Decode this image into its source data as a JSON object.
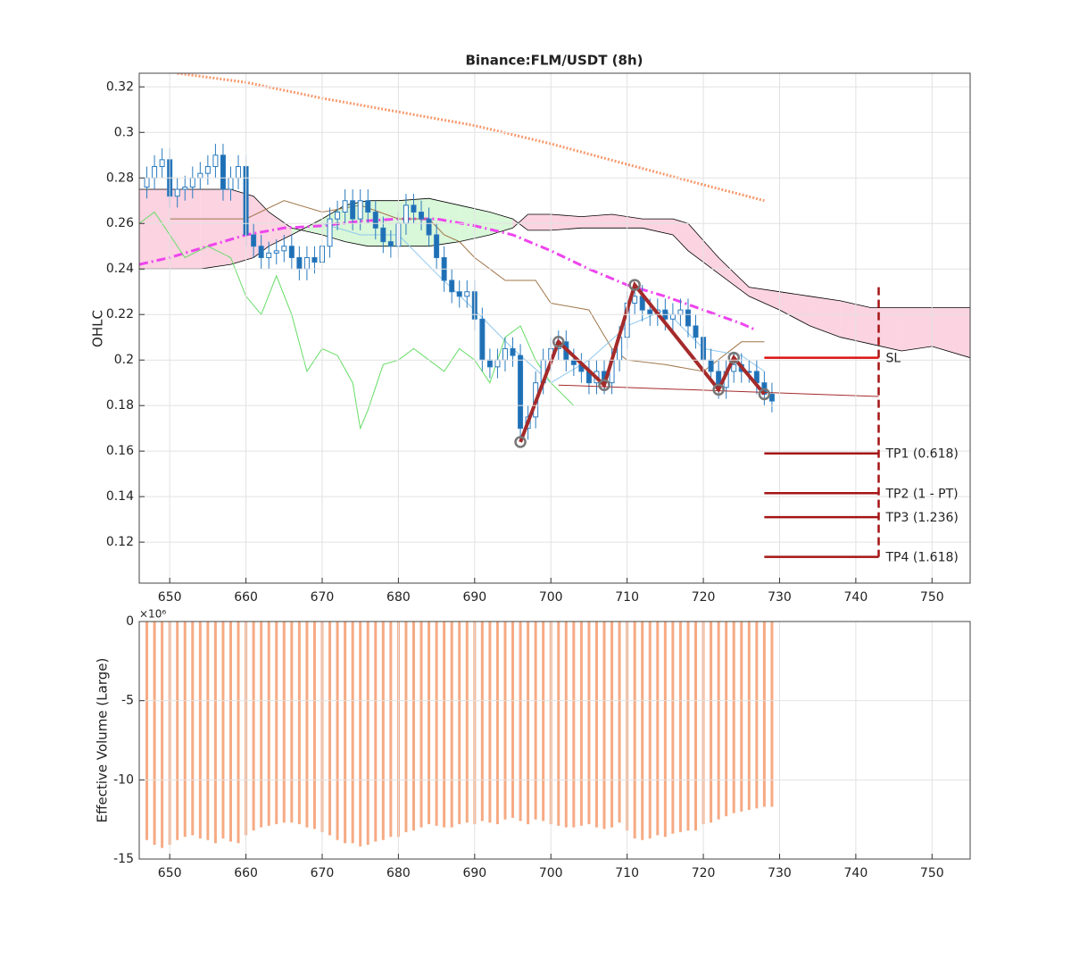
{
  "chart_data": [
    {
      "type": "candlestick",
      "title": "Binance:FLM/USDT (8h)",
      "ylabel": "OHLC",
      "xlim": [
        646,
        755
      ],
      "ylim": [
        0.102,
        0.326
      ],
      "xticks": [
        650,
        660,
        670,
        680,
        690,
        700,
        710,
        720,
        730,
        740,
        750
      ],
      "yticks": [
        0.12,
        0.14,
        0.16,
        0.18,
        0.2,
        0.22,
        0.24,
        0.26,
        0.28,
        0.3,
        0.32
      ],
      "grid": true,
      "up_color": "#ffffff",
      "down_color": "#1f6fb5",
      "edge_color": "#2a7bbf",
      "x": [
        647,
        648,
        649,
        650,
        651,
        652,
        653,
        654,
        655,
        656,
        657,
        658,
        659,
        660,
        661,
        662,
        663,
        664,
        665,
        666,
        667,
        668,
        669,
        670,
        671,
        672,
        673,
        674,
        675,
        676,
        677,
        678,
        679,
        680,
        681,
        682,
        683,
        684,
        685,
        686,
        687,
        688,
        689,
        690,
        691,
        692,
        693,
        694,
        695,
        696,
        697,
        698,
        699,
        700,
        701,
        702,
        703,
        704,
        705,
        706,
        707,
        708,
        709,
        710,
        711,
        712,
        713,
        714,
        715,
        716,
        717,
        718,
        719,
        720,
        721,
        722,
        723,
        724,
        725,
        726,
        727,
        728,
        729
      ],
      "open": [
        0.276,
        0.28,
        0.285,
        0.288,
        0.272,
        0.275,
        0.276,
        0.28,
        0.282,
        0.285,
        0.29,
        0.275,
        0.28,
        0.285,
        0.255,
        0.25,
        0.245,
        0.247,
        0.248,
        0.25,
        0.245,
        0.24,
        0.245,
        0.243,
        0.25,
        0.262,
        0.265,
        0.27,
        0.262,
        0.27,
        0.265,
        0.258,
        0.252,
        0.25,
        0.26,
        0.268,
        0.265,
        0.262,
        0.255,
        0.245,
        0.235,
        0.23,
        0.228,
        0.23,
        0.218,
        0.2,
        0.197,
        0.2,
        0.205,
        0.202,
        0.17,
        0.175,
        0.19,
        0.2,
        0.205,
        0.208,
        0.2,
        0.198,
        0.195,
        0.19,
        0.195,
        0.19,
        0.2,
        0.21,
        0.225,
        0.228,
        0.222,
        0.22,
        0.222,
        0.218,
        0.22,
        0.222,
        0.215,
        0.21,
        0.2,
        0.195,
        0.188,
        0.195,
        0.198,
        0.195,
        0.195,
        0.19,
        0.185
      ],
      "high": [
        0.285,
        0.29,
        0.293,
        0.293,
        0.28,
        0.281,
        0.285,
        0.287,
        0.29,
        0.295,
        0.295,
        0.285,
        0.29,
        0.29,
        0.26,
        0.255,
        0.252,
        0.253,
        0.255,
        0.255,
        0.25,
        0.25,
        0.25,
        0.255,
        0.267,
        0.27,
        0.275,
        0.275,
        0.275,
        0.275,
        0.27,
        0.263,
        0.257,
        0.265,
        0.273,
        0.273,
        0.27,
        0.267,
        0.26,
        0.25,
        0.24,
        0.235,
        0.235,
        0.235,
        0.223,
        0.205,
        0.205,
        0.21,
        0.21,
        0.207,
        0.18,
        0.195,
        0.205,
        0.21,
        0.213,
        0.213,
        0.205,
        0.203,
        0.2,
        0.2,
        0.2,
        0.205,
        0.215,
        0.23,
        0.233,
        0.233,
        0.227,
        0.227,
        0.227,
        0.225,
        0.227,
        0.227,
        0.22,
        0.215,
        0.205,
        0.2,
        0.2,
        0.203,
        0.203,
        0.2,
        0.2,
        0.195,
        0.19
      ],
      "low": [
        0.271,
        0.275,
        0.28,
        0.267,
        0.267,
        0.27,
        0.271,
        0.275,
        0.277,
        0.28,
        0.27,
        0.27,
        0.275,
        0.25,
        0.245,
        0.24,
        0.24,
        0.242,
        0.243,
        0.24,
        0.235,
        0.235,
        0.238,
        0.238,
        0.245,
        0.257,
        0.26,
        0.257,
        0.257,
        0.26,
        0.253,
        0.247,
        0.245,
        0.245,
        0.255,
        0.26,
        0.257,
        0.25,
        0.24,
        0.23,
        0.225,
        0.223,
        0.223,
        0.213,
        0.195,
        0.192,
        0.192,
        0.195,
        0.197,
        0.165,
        0.165,
        0.17,
        0.185,
        0.195,
        0.2,
        0.195,
        0.193,
        0.19,
        0.185,
        0.185,
        0.185,
        0.185,
        0.195,
        0.205,
        0.22,
        0.217,
        0.215,
        0.215,
        0.213,
        0.213,
        0.215,
        0.21,
        0.205,
        0.195,
        0.19,
        0.183,
        0.183,
        0.19,
        0.19,
        0.19,
        0.185,
        0.18,
        0.177
      ],
      "close": [
        0.28,
        0.285,
        0.288,
        0.272,
        0.275,
        0.276,
        0.28,
        0.282,
        0.285,
        0.29,
        0.275,
        0.28,
        0.285,
        0.255,
        0.25,
        0.245,
        0.247,
        0.248,
        0.25,
        0.245,
        0.24,
        0.245,
        0.243,
        0.25,
        0.262,
        0.265,
        0.27,
        0.262,
        0.27,
        0.265,
        0.258,
        0.252,
        0.25,
        0.26,
        0.268,
        0.265,
        0.262,
        0.255,
        0.245,
        0.235,
        0.23,
        0.228,
        0.23,
        0.218,
        0.2,
        0.197,
        0.2,
        0.205,
        0.202,
        0.17,
        0.175,
        0.19,
        0.2,
        0.205,
        0.208,
        0.2,
        0.198,
        0.195,
        0.19,
        0.195,
        0.19,
        0.2,
        0.21,
        0.225,
        0.228,
        0.222,
        0.22,
        0.222,
        0.218,
        0.22,
        0.222,
        0.215,
        0.21,
        0.2,
        0.195,
        0.188,
        0.195,
        0.198,
        0.195,
        0.195,
        0.19,
        0.185,
        0.182
      ],
      "cloud": {
        "x": [
          646,
          650,
          654,
          658,
          661,
          663,
          666,
          670,
          673,
          676,
          680,
          684,
          688,
          692,
          695,
          697,
          700,
          704,
          708,
          712,
          716,
          718,
          722,
          726,
          730,
          734,
          738,
          742,
          746,
          750,
          755
        ],
        "span_a": [
          0.24,
          0.24,
          0.24,
          0.242,
          0.245,
          0.25,
          0.255,
          0.262,
          0.268,
          0.27,
          0.27,
          0.271,
          0.268,
          0.265,
          0.262,
          0.257,
          0.257,
          0.258,
          0.258,
          0.258,
          0.255,
          0.248,
          0.238,
          0.228,
          0.222,
          0.215,
          0.21,
          0.207,
          0.204,
          0.206,
          0.201
        ],
        "span_b": [
          0.275,
          0.275,
          0.275,
          0.275,
          0.272,
          0.265,
          0.258,
          0.255,
          0.252,
          0.25,
          0.25,
          0.25,
          0.252,
          0.255,
          0.258,
          0.264,
          0.264,
          0.263,
          0.264,
          0.262,
          0.262,
          0.26,
          0.245,
          0.232,
          0.23,
          0.228,
          0.226,
          0.223,
          0.223,
          0.223,
          0.223
        ],
        "bull_color": "#d9f7d9",
        "bear_color": "#fbd3e1"
      },
      "lines": [
        {
          "color": "#f79a6e",
          "width": 3,
          "dash": "2 2",
          "x": [
            651,
            660,
            670,
            680,
            690,
            700,
            710,
            720,
            728
          ],
          "values": [
            0.326,
            0.322,
            0.315,
            0.309,
            0.303,
            0.295,
            0.286,
            0.277,
            0.27
          ]
        },
        {
          "color": "#ee44ee",
          "width": 3,
          "dash": "10 4 2 4",
          "x": [
            646,
            650,
            655,
            660,
            665,
            670,
            675,
            680,
            685,
            690,
            695,
            700,
            705,
            710,
            715,
            720,
            725,
            727
          ],
          "values": [
            0.242,
            0.245,
            0.25,
            0.255,
            0.258,
            0.259,
            0.261,
            0.262,
            0.262,
            0.259,
            0.255,
            0.248,
            0.24,
            0.233,
            0.228,
            0.222,
            0.216,
            0.213
          ]
        },
        {
          "color": "#a0764a",
          "width": 1,
          "dash": "",
          "x": [
            650,
            660,
            665,
            670,
            675,
            680,
            684,
            686,
            688,
            690,
            692,
            694,
            698,
            700,
            705,
            708,
            710,
            715,
            720,
            725,
            728
          ],
          "values": [
            0.262,
            0.262,
            0.27,
            0.265,
            0.268,
            0.262,
            0.262,
            0.255,
            0.252,
            0.245,
            0.24,
            0.235,
            0.235,
            0.225,
            0.222,
            0.205,
            0.2,
            0.198,
            0.195,
            0.208,
            0.208
          ]
        },
        {
          "color": "#8ec8ef",
          "width": 1,
          "dash": "",
          "x": [
            670,
            675,
            680,
            685,
            690,
            695,
            700,
            705,
            710,
            715,
            720,
            725,
            728
          ],
          "values": [
            0.26,
            0.255,
            0.255,
            0.238,
            0.222,
            0.205,
            0.19,
            0.2,
            0.215,
            0.222,
            0.205,
            0.202,
            0.195
          ]
        },
        {
          "color": "#66dd66",
          "width": 1,
          "dash": "",
          "x": [
            646,
            648,
            650,
            652,
            655,
            658,
            660,
            662,
            664,
            666,
            668,
            669,
            670,
            672,
            674,
            675,
            676,
            678,
            680,
            682,
            684,
            686,
            688,
            690,
            692,
            694,
            696,
            698,
            700,
            703
          ],
          "values": [
            0.26,
            0.265,
            0.255,
            0.245,
            0.25,
            0.245,
            0.228,
            0.22,
            0.237,
            0.22,
            0.195,
            0.2,
            0.205,
            0.202,
            0.19,
            0.17,
            0.178,
            0.198,
            0.2,
            0.205,
            0.2,
            0.195,
            0.205,
            0.2,
            0.19,
            0.21,
            0.215,
            0.2,
            0.19,
            0.18
          ]
        }
      ],
      "pattern": {
        "color": "#a52a2a",
        "x": [
          696,
          701,
          707,
          711,
          722,
          724,
          728
        ],
        "values": [
          0.164,
          0.208,
          0.189,
          0.233,
          0.187,
          0.201,
          0.185
        ]
      },
      "trendline": {
        "color": "#a52a2a",
        "x": [
          701,
          743
        ],
        "values": [
          0.189,
          0.184
        ]
      },
      "levels": [
        {
          "label": "SL",
          "value": 0.201,
          "color": "#dd1111"
        },
        {
          "label": "TP1 (0.618)",
          "value": 0.159,
          "color": "#a51515"
        },
        {
          "label": "TP2 (1 - PT)",
          "value": 0.1415,
          "color": "#a51515"
        },
        {
          "label": "TP3 (1.236)",
          "value": 0.131,
          "color": "#a51515"
        },
        {
          "label": "TP4 (1.618)",
          "value": 0.1135,
          "color": "#a51515"
        }
      ],
      "level_x": [
        728,
        743
      ],
      "stop_top": 0.232
    },
    {
      "type": "bar",
      "ylabel": "Effective Volume (Large)",
      "exponent_label": "×10⁶",
      "color": "#f6aa84",
      "xlim": [
        646,
        755
      ],
      "ylim": [
        -15,
        0
      ],
      "xticks": [
        650,
        660,
        670,
        680,
        690,
        700,
        710,
        720,
        730,
        740,
        750
      ],
      "yticks": [
        -15,
        -10,
        -5,
        0
      ],
      "grid": true,
      "x": [
        647,
        648,
        649,
        650,
        651,
        652,
        653,
        654,
        655,
        656,
        657,
        658,
        659,
        660,
        661,
        662,
        663,
        664,
        665,
        666,
        667,
        668,
        669,
        670,
        671,
        672,
        673,
        674,
        675,
        676,
        677,
        678,
        679,
        680,
        681,
        682,
        683,
        684,
        685,
        686,
        687,
        688,
        689,
        690,
        691,
        692,
        693,
        694,
        695,
        696,
        697,
        698,
        699,
        700,
        701,
        702,
        703,
        704,
        705,
        706,
        707,
        708,
        709,
        710,
        711,
        712,
        713,
        714,
        715,
        716,
        717,
        718,
        719,
        720,
        721,
        722,
        723,
        724,
        725,
        726,
        727,
        728,
        729
      ],
      "values": [
        -13.8,
        -14.1,
        -14.3,
        -14.1,
        -13.8,
        -13.6,
        -13.5,
        -13.7,
        -13.8,
        -14.0,
        -13.7,
        -13.9,
        -14.0,
        -13.5,
        -13.2,
        -13.0,
        -12.9,
        -12.8,
        -12.7,
        -12.7,
        -12.8,
        -13.0,
        -13.1,
        -13.3,
        -13.5,
        -13.8,
        -14.0,
        -14.0,
        -14.2,
        -14.1,
        -13.9,
        -13.8,
        -13.6,
        -13.6,
        -13.3,
        -13.2,
        -13.0,
        -12.8,
        -12.9,
        -13.0,
        -13.0,
        -12.8,
        -12.7,
        -12.8,
        -12.6,
        -12.7,
        -12.8,
        -12.5,
        -12.4,
        -12.6,
        -12.8,
        -12.5,
        -12.6,
        -12.8,
        -12.9,
        -13.0,
        -13.0,
        -12.9,
        -12.8,
        -13.0,
        -13.1,
        -13.0,
        -12.7,
        -13.2,
        -13.7,
        -13.8,
        -13.7,
        -13.5,
        -13.6,
        -13.4,
        -13.3,
        -13.2,
        -13.2,
        -12.8,
        -12.7,
        -12.5,
        -12.3,
        -12.1,
        -12.0,
        -11.9,
        -11.8,
        -11.7,
        -11.7
      ]
    }
  ]
}
